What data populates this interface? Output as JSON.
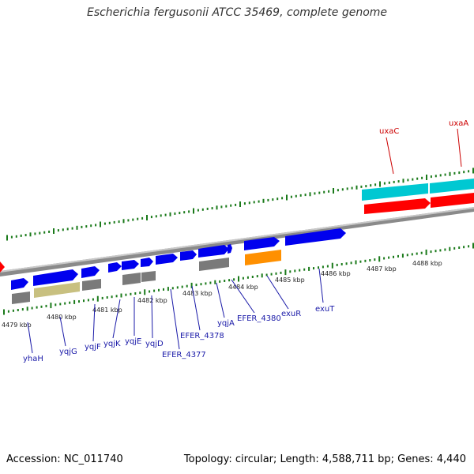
{
  "title": "Escherichia fergusonii ATCC 35469, complete genome",
  "footer": {
    "accession": "Accession: NC_011740",
    "info": "Topology: circular; Length: 4,588,711 bp; Genes: 4,440"
  },
  "colors": {
    "cds_forward": "#0000ee",
    "cds_reverse": "#ff0000",
    "rna": "#00c8d2",
    "gene_gray": "#7a7a7a",
    "gene_khaki": "#c8c080",
    "gene_orange": "#ff9000",
    "tick": "#1a7a1a",
    "backbone": "#8a8a8a"
  },
  "kbp_labels": [
    "4479 kbp",
    "4480 kbp",
    "4481 kbp",
    "4482 kbp",
    "4483 kbp",
    "4484 kbp",
    "4485 kbp",
    "4486 kbp",
    "4487 kbp",
    "4488 kbp"
  ],
  "gene_labels_lower": [
    "yhaH",
    "yqjG",
    "yqjF",
    "yqjK",
    "yqjE",
    "yqjD",
    "EFER_4377",
    "EFER_4378",
    "yqjA",
    "EFER_4380",
    "exuR",
    "exuT"
  ],
  "gene_labels_upper": [
    "uxaC",
    "uxaA"
  ]
}
